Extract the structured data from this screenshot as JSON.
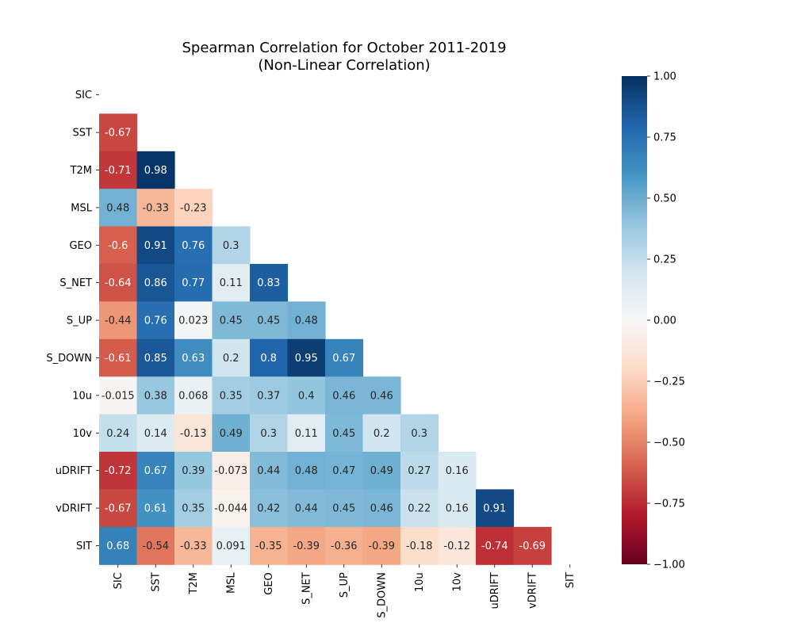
{
  "chart_data": {
    "type": "heatmap",
    "title": "Spearman Correlation for October 2011-2019",
    "subtitle": "(Non-Linear Correlation)",
    "variables": [
      "SIC",
      "SST",
      "T2M",
      "MSL",
      "GEO",
      "S_NET",
      "S_UP",
      "S_DOWN",
      "10u",
      "10v",
      "uDRIFT",
      "vDRIFT",
      "SIT"
    ],
    "mask": "upper-triangle-including-diagonal",
    "cells": [
      [],
      [
        "-0.67"
      ],
      [
        "-0.71",
        "0.98"
      ],
      [
        "0.48",
        "-0.33",
        "-0.23"
      ],
      [
        "-0.6",
        "0.91",
        "0.76",
        "0.3"
      ],
      [
        "-0.64",
        "0.86",
        "0.77",
        "0.11",
        "0.83"
      ],
      [
        "-0.44",
        "0.76",
        "0.023",
        "0.45",
        "0.45",
        "0.48"
      ],
      [
        "-0.61",
        "0.85",
        "0.63",
        "0.2",
        "0.8",
        "0.95",
        "0.67"
      ],
      [
        "-0.015",
        "0.38",
        "0.068",
        "0.35",
        "0.37",
        "0.4",
        "0.46",
        "0.46"
      ],
      [
        "0.24",
        "0.14",
        "-0.13",
        "0.49",
        "0.3",
        "0.11",
        "0.45",
        "0.2",
        "0.3"
      ],
      [
        "-0.72",
        "0.67",
        "0.39",
        "-0.073",
        "0.44",
        "0.48",
        "0.47",
        "0.49",
        "0.27",
        "0.16"
      ],
      [
        "-0.67",
        "0.61",
        "0.35",
        "-0.044",
        "0.42",
        "0.44",
        "0.45",
        "0.46",
        "0.22",
        "0.16",
        "0.91"
      ],
      [
        "0.68",
        "-0.54",
        "-0.33",
        "0.091",
        "-0.35",
        "-0.39",
        "-0.36",
        "-0.39",
        "-0.18",
        "-0.12",
        "-0.74",
        "-0.69"
      ]
    ],
    "colorbar": {
      "colormap": "RdBu",
      "vmin": -1.0,
      "vmax": 1.0,
      "ticks": [
        "1.00",
        "0.75",
        "0.50",
        "0.25",
        "0.00",
        "−0.25",
        "−0.50",
        "−0.75",
        "−1.00"
      ]
    }
  }
}
